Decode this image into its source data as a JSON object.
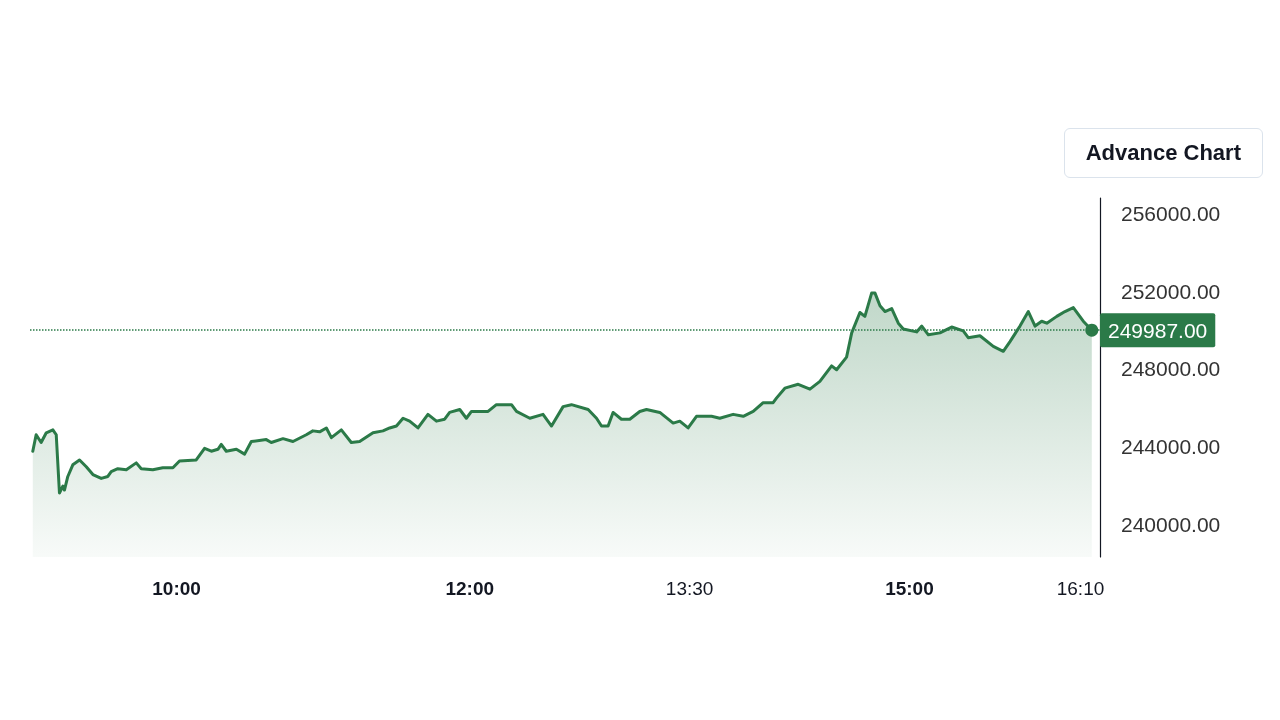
{
  "chart_data": {
    "type": "area",
    "color": "#2b7a48",
    "marker": "none",
    "line_style": "solid",
    "x": [
      9.019,
      9.042,
      9.076,
      9.111,
      9.156,
      9.179,
      9.201,
      9.224,
      9.235,
      9.258,
      9.292,
      9.338,
      9.384,
      9.429,
      9.486,
      9.531,
      9.554,
      9.599,
      9.657,
      9.725,
      9.759,
      9.838,
      9.906,
      9.975,
      10.02,
      10.134,
      10.191,
      10.237,
      10.282,
      10.305,
      10.339,
      10.408,
      10.464,
      10.51,
      10.612,
      10.646,
      10.726,
      10.794,
      10.885,
      10.93,
      10.976,
      11.022,
      11.056,
      11.124,
      11.192,
      11.249,
      11.34,
      11.408,
      11.454,
      11.5,
      11.545,
      11.59,
      11.647,
      11.715,
      11.773,
      11.829,
      11.863,
      11.932,
      11.977,
      12.012,
      12.125,
      12.182,
      12.285,
      12.319,
      12.41,
      12.5,
      12.558,
      12.637,
      12.694,
      12.808,
      12.865,
      12.899,
      12.944,
      12.978,
      13.035,
      13.092,
      13.16,
      13.206,
      13.297,
      13.388,
      13.433,
      13.49,
      13.547,
      13.65,
      13.706,
      13.797,
      13.866,
      13.934,
      14.002,
      14.07,
      14.094,
      14.15,
      14.241,
      14.321,
      14.389,
      14.469,
      14.503,
      14.571,
      14.606,
      14.662,
      14.696,
      14.742,
      14.765,
      14.799,
      14.833,
      14.879,
      14.924,
      14.958,
      15.049,
      15.084,
      15.129,
      15.208,
      15.288,
      15.367,
      15.401,
      15.481,
      15.572,
      15.64,
      15.686,
      15.754,
      15.811,
      15.857,
      15.902,
      15.937,
      16.005,
      16.061,
      16.118,
      16.186,
      16.244
    ],
    "values": [
      243750,
      244600,
      244200,
      244700,
      244850,
      244600,
      241600,
      241950,
      241750,
      242450,
      243050,
      243300,
      242950,
      242550,
      242350,
      242450,
      242700,
      242850,
      242800,
      243150,
      242850,
      242800,
      242900,
      242900,
      243250,
      243300,
      243900,
      243750,
      243850,
      244100,
      243750,
      243850,
      243600,
      244250,
      244350,
      244200,
      244400,
      244250,
      244600,
      244800,
      244750,
      244950,
      244450,
      244850,
      244200,
      244250,
      244700,
      244800,
      244950,
      245050,
      245450,
      245300,
      244950,
      245650,
      245300,
      245400,
      245750,
      245900,
      245450,
      245800,
      245800,
      246150,
      246150,
      245800,
      245450,
      245650,
      245050,
      246050,
      246150,
      245900,
      245450,
      245050,
      245050,
      245750,
      245400,
      245400,
      245800,
      245900,
      245750,
      245200,
      245300,
      244950,
      245550,
      245550,
      245450,
      245650,
      245550,
      245800,
      246250,
      246250,
      246500,
      247000,
      247200,
      246950,
      247350,
      248150,
      247950,
      248600,
      249850,
      250900,
      250700,
      251900,
      251900,
      251250,
      250950,
      251100,
      250350,
      250050,
      249900,
      250200,
      249750,
      249850,
      250150,
      249950,
      249600,
      249700,
      249150,
      248900,
      249400,
      250200,
      250950,
      250200,
      250450,
      250350,
      250700,
      250950,
      251150,
      250450,
      249987
    ],
    "xlim": [
      9.0,
      16.3
    ],
    "xticks": [
      {
        "value": 10,
        "label": "10:00"
      },
      {
        "value": 12,
        "label": "12:00"
      },
      {
        "value": 13.5,
        "label": "13:30"
      },
      {
        "value": 15,
        "label": "15:00"
      },
      {
        "value": 16.167,
        "label": "16:10"
      }
    ],
    "ylim": [
      238300,
      256800
    ],
    "yticks": [
      {
        "value": 240000,
        "label": "240000.00"
      },
      {
        "value": 244000,
        "label": "244000.00"
      },
      {
        "value": 248000,
        "label": "248000.00"
      },
      {
        "value": 252000,
        "label": "252000.00"
      },
      {
        "value": 256000,
        "label": "256000.00"
      }
    ],
    "ref_lines": [
      {
        "axis": "y",
        "value": 249987,
        "label": "249987.00",
        "color": "#2b7a48",
        "line_style": "dotted"
      }
    ],
    "annotations": [
      "Advance Chart"
    ]
  }
}
